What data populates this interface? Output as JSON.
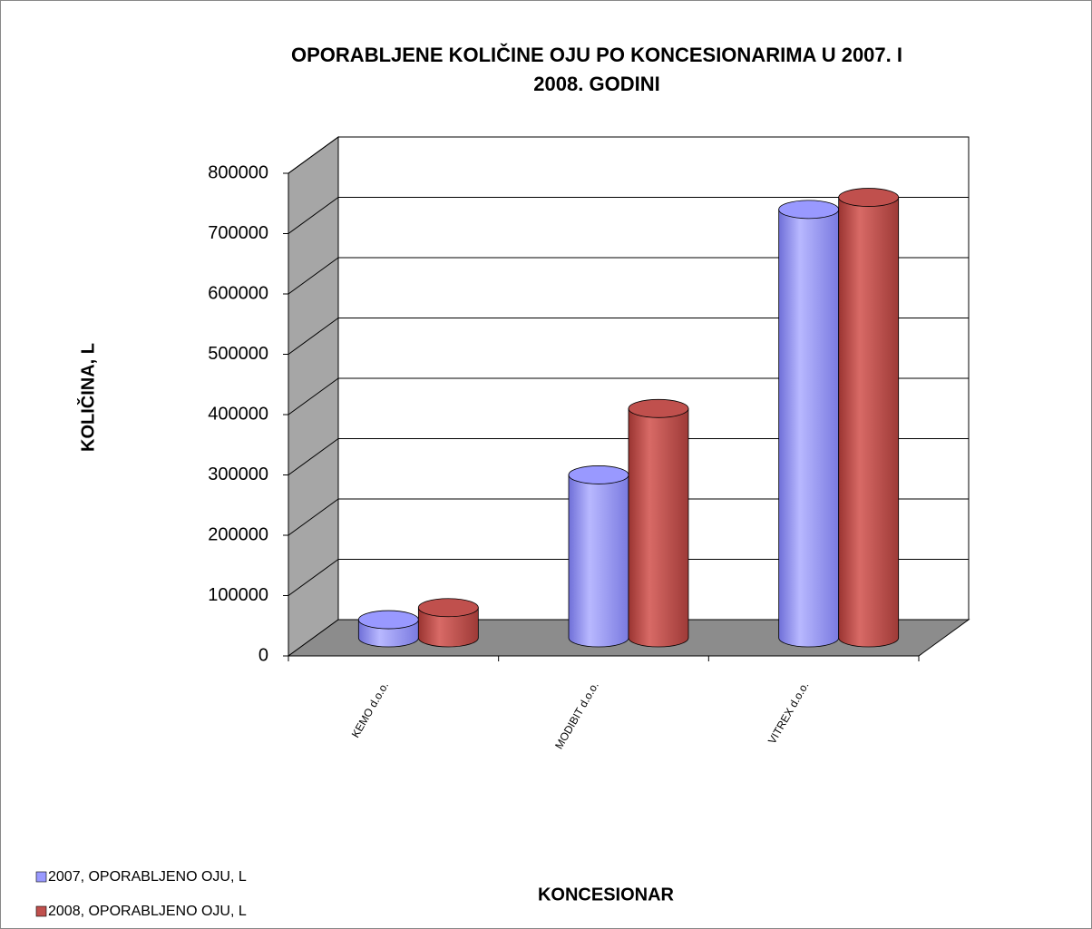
{
  "chart_data": {
    "type": "bar3d",
    "title": "OPORABLJENE KOLIČINE OJU PO KONCESIONARIMA  U 2007. I 2008. GODINI",
    "y_label": "KOLIČINA, L",
    "x_label": "KONCESIONAR",
    "categories": [
      "KEMO d.o.o.",
      "MODIBIT d.o.o.",
      "VITREX d.o.o."
    ],
    "series": [
      {
        "name": "2007, OPORABLJENO OJU, L",
        "color": "#9999ff",
        "values": [
          30000,
          270000,
          710000
        ]
      },
      {
        "name": "2008, OPORABLJENO OJU, L",
        "color": "#c0504d",
        "values": [
          50000,
          380000,
          730000
        ]
      }
    ],
    "ylim": [
      0,
      800000
    ],
    "yticks": [
      0,
      100000,
      200000,
      300000,
      400000,
      500000,
      600000,
      700000,
      800000
    ],
    "grid": true,
    "legend": "bottom-left"
  }
}
